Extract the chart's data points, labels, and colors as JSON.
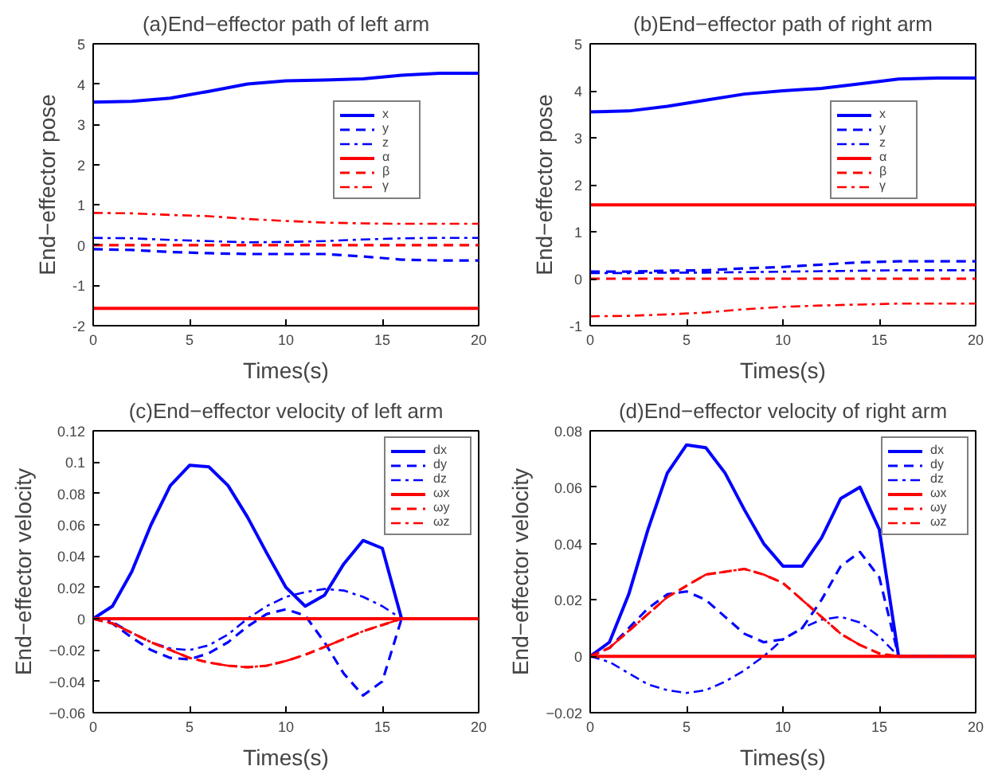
{
  "chart_data": [
    {
      "type": "line",
      "title": "(a)End−effector path of left arm",
      "xlabel": "Times(s)",
      "ylabel": "End−effector pose",
      "x": [
        0,
        2,
        4,
        6,
        8,
        10,
        12,
        14,
        16,
        18,
        20
      ],
      "xlim": [
        0,
        20
      ],
      "xticks": [
        0,
        5,
        10,
        15,
        20
      ],
      "ylim": [
        -2,
        5
      ],
      "yticks": [
        -2,
        -1,
        0,
        1,
        2,
        3,
        4,
        5
      ],
      "grid": false,
      "legend": "top right",
      "series": [
        {
          "name": "x",
          "color": "#0000ff",
          "line_style": "solid",
          "values": [
            3.55,
            3.57,
            3.65,
            3.82,
            4.0,
            4.08,
            4.1,
            4.13,
            4.22,
            4.27,
            4.27
          ]
        },
        {
          "name": "y",
          "color": "#0000ff",
          "line_style": "dashed",
          "values": [
            -0.1,
            -0.12,
            -0.17,
            -0.2,
            -0.22,
            -0.22,
            -0.22,
            -0.28,
            -0.36,
            -0.38,
            -0.38
          ]
        },
        {
          "name": "z",
          "color": "#0000ff",
          "line_style": "dashdot",
          "values": [
            0.18,
            0.17,
            0.13,
            0.1,
            0.07,
            0.08,
            0.1,
            0.14,
            0.17,
            0.18,
            0.18
          ]
        },
        {
          "name": "α",
          "color": "#ff0000",
          "line_style": "solid",
          "values": [
            -1.57,
            -1.57,
            -1.57,
            -1.57,
            -1.57,
            -1.57,
            -1.57,
            -1.57,
            -1.57,
            -1.57,
            -1.57
          ]
        },
        {
          "name": "β",
          "color": "#ff0000",
          "line_style": "dashed",
          "values": [
            0,
            0,
            0,
            0,
            0,
            0,
            0,
            0,
            0,
            0,
            0
          ]
        },
        {
          "name": "γ",
          "color": "#ff0000",
          "line_style": "dashdot",
          "values": [
            0.8,
            0.79,
            0.75,
            0.72,
            0.65,
            0.6,
            0.56,
            0.54,
            0.53,
            0.53,
            0.53
          ]
        }
      ]
    },
    {
      "type": "line",
      "title": "(b)End−effector path of right arm",
      "xlabel": "Times(s)",
      "ylabel": "End−effector pose",
      "x": [
        0,
        2,
        4,
        6,
        8,
        10,
        12,
        14,
        16,
        18,
        20
      ],
      "xlim": [
        0,
        20
      ],
      "xticks": [
        0,
        5,
        10,
        15,
        20
      ],
      "ylim": [
        -1,
        5
      ],
      "yticks": [
        -1,
        0,
        1,
        2,
        3,
        4,
        5
      ],
      "grid": false,
      "legend": "top right",
      "series": [
        {
          "name": "x",
          "color": "#0000ff",
          "line_style": "solid",
          "values": [
            3.55,
            3.57,
            3.67,
            3.8,
            3.93,
            4.0,
            4.05,
            4.15,
            4.25,
            4.27,
            4.27
          ]
        },
        {
          "name": "y",
          "color": "#0000ff",
          "line_style": "dashed",
          "values": [
            0.15,
            0.15,
            0.17,
            0.18,
            0.22,
            0.25,
            0.3,
            0.35,
            0.37,
            0.37,
            0.37
          ]
        },
        {
          "name": "z",
          "color": "#0000ff",
          "line_style": "dashdot",
          "values": [
            0.12,
            0.12,
            0.13,
            0.13,
            0.14,
            0.15,
            0.16,
            0.17,
            0.18,
            0.18,
            0.18
          ]
        },
        {
          "name": "α",
          "color": "#ff0000",
          "line_style": "solid",
          "values": [
            1.57,
            1.57,
            1.57,
            1.57,
            1.57,
            1.57,
            1.57,
            1.57,
            1.57,
            1.57,
            1.57
          ]
        },
        {
          "name": "β",
          "color": "#ff0000",
          "line_style": "dashed",
          "values": [
            0,
            0,
            0,
            0,
            0,
            0,
            0,
            0,
            0,
            0,
            0
          ]
        },
        {
          "name": "γ",
          "color": "#ff0000",
          "line_style": "dashdot",
          "values": [
            -0.8,
            -0.79,
            -0.76,
            -0.72,
            -0.65,
            -0.6,
            -0.57,
            -0.55,
            -0.53,
            -0.53,
            -0.53
          ]
        }
      ]
    },
    {
      "type": "line",
      "title": "(c)End−effector velocity of left arm",
      "xlabel": "Times(s)",
      "ylabel": "End−effector velocity",
      "x": [
        0,
        1,
        2,
        3,
        4,
        5,
        6,
        7,
        8,
        9,
        10,
        11,
        12,
        13,
        14,
        15,
        16,
        20
      ],
      "xlim": [
        0,
        20
      ],
      "xticks": [
        0,
        5,
        10,
        15,
        20
      ],
      "ylim": [
        -0.06,
        0.12
      ],
      "yticks": [
        {
          "value": -0.06,
          "label": "−0.06"
        },
        {
          "value": -0.04,
          "label": "−0.04"
        },
        {
          "value": -0.02,
          "label": "−0.02"
        },
        0,
        0.02,
        0.04,
        0.06,
        0.08,
        0.1,
        0.12
      ],
      "grid": false,
      "legend": "top right",
      "series": [
        {
          "name": "dx",
          "color": "#0000ff",
          "line_style": "solid",
          "values": [
            0,
            0.008,
            0.03,
            0.06,
            0.085,
            0.098,
            0.097,
            0.085,
            0.065,
            0.042,
            0.02,
            0.008,
            0.015,
            0.035,
            0.05,
            0.045,
            0,
            0
          ]
        },
        {
          "name": "dy",
          "color": "#0000ff",
          "line_style": "dashed",
          "values": [
            0,
            -0.003,
            -0.012,
            -0.02,
            -0.025,
            -0.026,
            -0.022,
            -0.015,
            -0.005,
            0.003,
            0.006,
            0.002,
            -0.015,
            -0.035,
            -0.049,
            -0.04,
            0,
            0
          ]
        },
        {
          "name": "dz",
          "color": "#0000ff",
          "line_style": "dashdot",
          "values": [
            0,
            -0.002,
            -0.009,
            -0.015,
            -0.019,
            -0.02,
            -0.017,
            -0.01,
            0,
            0.008,
            0.014,
            0.017,
            0.019,
            0.018,
            0.014,
            0.008,
            0,
            0
          ]
        },
        {
          "name": "ωx",
          "color": "#ff0000",
          "line_style": "solid",
          "values": [
            0,
            0,
            0,
            0,
            0,
            0,
            0,
            0,
            0,
            0,
            0,
            0,
            0,
            0,
            0,
            0,
            0,
            0
          ]
        },
        {
          "name": "ωy",
          "color": "#ff0000",
          "line_style": "dashed",
          "values": [
            0,
            -0.003,
            -0.009,
            -0.015,
            -0.02,
            -0.025,
            -0.028,
            -0.03,
            -0.031,
            -0.03,
            -0.027,
            -0.023,
            -0.018,
            -0.013,
            -0.008,
            -0.004,
            0,
            0
          ]
        },
        {
          "name": "ωz",
          "color": "#ff0000",
          "line_style": "dashdot",
          "values": [
            0,
            -0.003,
            -0.009,
            -0.015,
            -0.02,
            -0.025,
            -0.028,
            -0.03,
            -0.031,
            -0.03,
            -0.027,
            -0.023,
            -0.018,
            -0.013,
            -0.008,
            -0.004,
            0,
            0
          ]
        }
      ]
    },
    {
      "type": "line",
      "title": "(d)End−effector velocity of right arm",
      "xlabel": "Times(s)",
      "ylabel": "End−effector velocity",
      "x": [
        0,
        1,
        2,
        3,
        4,
        5,
        6,
        7,
        8,
        9,
        10,
        11,
        12,
        13,
        14,
        15,
        16,
        20
      ],
      "xlim": [
        0,
        20
      ],
      "xticks": [
        0,
        5,
        10,
        15,
        20
      ],
      "ylim": [
        -0.02,
        0.08
      ],
      "yticks": [
        {
          "value": -0.02,
          "label": "−0.02"
        },
        0,
        0.02,
        0.04,
        0.06,
        0.08
      ],
      "grid": false,
      "legend": "top right",
      "series": [
        {
          "name": "dx",
          "color": "#0000ff",
          "line_style": "solid",
          "values": [
            0,
            0.005,
            0.022,
            0.045,
            0.065,
            0.075,
            0.074,
            0.065,
            0.052,
            0.04,
            0.032,
            0.032,
            0.042,
            0.056,
            0.06,
            0.045,
            0,
            0
          ]
        },
        {
          "name": "dy",
          "color": "#0000ff",
          "line_style": "dashed",
          "values": [
            0,
            0.003,
            0.01,
            0.017,
            0.022,
            0.023,
            0.02,
            0.014,
            0.008,
            0.005,
            0.006,
            0.01,
            0.02,
            0.032,
            0.037,
            0.028,
            0,
            0
          ]
        },
        {
          "name": "dz",
          "color": "#0000ff",
          "line_style": "dashdot",
          "values": [
            0,
            -0.002,
            -0.006,
            -0.01,
            -0.012,
            -0.013,
            -0.012,
            -0.009,
            -0.005,
            0,
            0.006,
            0.01,
            0.013,
            0.014,
            0.012,
            0.007,
            0,
            0
          ]
        },
        {
          "name": "ωx",
          "color": "#ff0000",
          "line_style": "solid",
          "values": [
            0,
            0,
            0,
            0,
            0,
            0,
            0,
            0,
            0,
            0,
            0,
            0,
            0,
            0,
            0,
            0,
            0,
            0
          ]
        },
        {
          "name": "ωy",
          "color": "#ff0000",
          "line_style": "dashed",
          "values": [
            0,
            0.003,
            0.009,
            0.015,
            0.021,
            0.025,
            0.029,
            0.03,
            0.031,
            0.029,
            0.026,
            0.02,
            0.014,
            0.008,
            0.004,
            0.001,
            0,
            0
          ]
        },
        {
          "name": "ωz",
          "color": "#ff0000",
          "line_style": "dashdot",
          "values": [
            0,
            0.003,
            0.009,
            0.015,
            0.021,
            0.025,
            0.029,
            0.03,
            0.031,
            0.029,
            0.026,
            0.02,
            0.014,
            0.008,
            0.004,
            0.001,
            0,
            0
          ]
        }
      ]
    }
  ]
}
